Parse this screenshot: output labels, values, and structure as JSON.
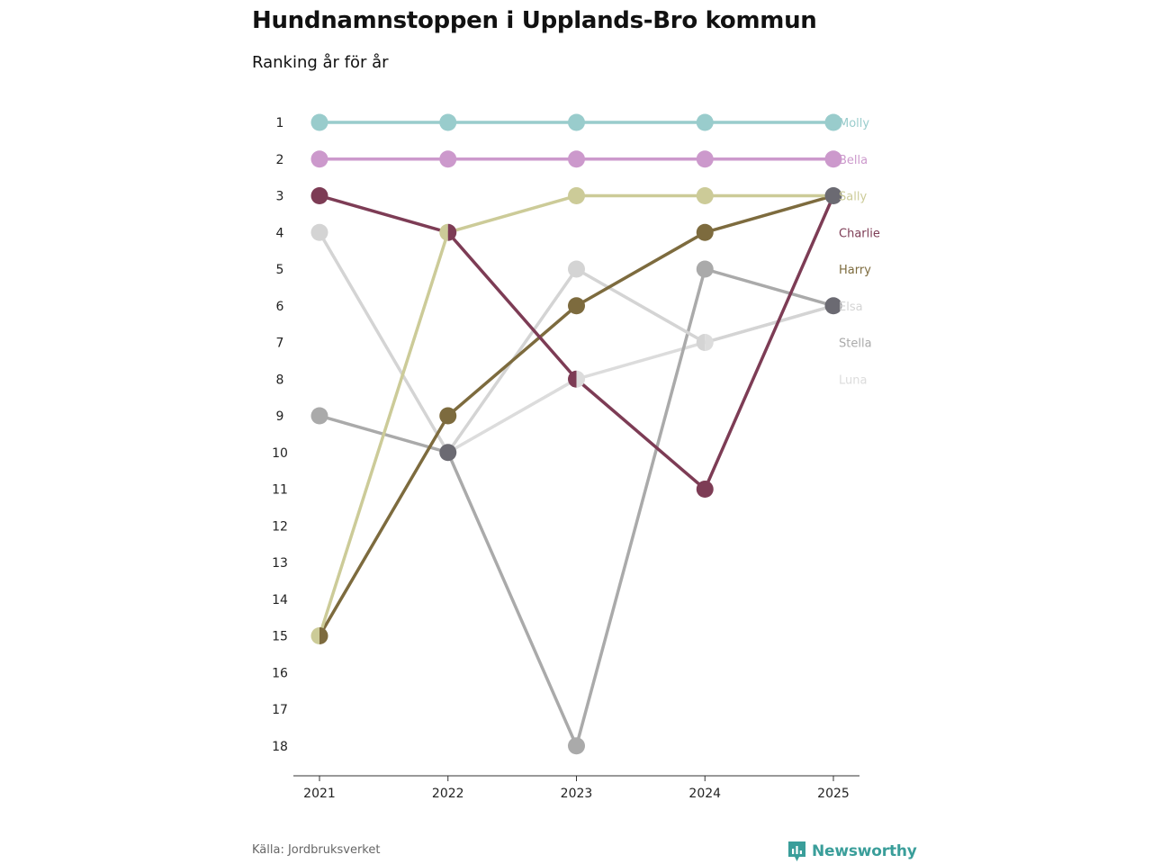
{
  "header": {
    "title": "Hundnamnstoppen i Upplands-Bro kommun",
    "subtitle": "Ranking år för år"
  },
  "footer": {
    "source": "Källa: Jordbruksverket",
    "brand": "Newsworthy"
  },
  "chart_data": {
    "type": "line",
    "title": "Hundnamnstoppen i Upplands-Bro kommun",
    "subtitle": "Ranking år för år",
    "xlabel": "",
    "ylabel": "",
    "x": [
      "2021",
      "2022",
      "2023",
      "2024",
      "2025"
    ],
    "y_ticks": [
      "1",
      "2",
      "3",
      "4",
      "5",
      "6",
      "7",
      "8",
      "9",
      "10",
      "11",
      "12",
      "13",
      "14",
      "15",
      "16",
      "17",
      "18"
    ],
    "ylim": [
      1,
      18
    ],
    "y_inverted": true,
    "series": [
      {
        "name": "Luna",
        "color": "#dcdcdc",
        "values": [
          null,
          10,
          8,
          7,
          6
        ],
        "label_rank": 8
      },
      {
        "name": "Stella",
        "color": "#aaaaaa",
        "values": [
          9,
          10,
          18,
          5,
          6
        ],
        "label_rank": 7
      },
      {
        "name": "Elsa",
        "color": "#d4d4d4",
        "values": [
          4,
          10,
          5,
          7,
          6
        ],
        "label_rank": 6
      },
      {
        "name": "Harry",
        "color": "#7d6b3e",
        "values": [
          15,
          9,
          6,
          4,
          3
        ],
        "label_rank": 5
      },
      {
        "name": "Charlie",
        "color": "#7d3c55",
        "values": [
          3,
          4,
          8,
          11,
          3
        ],
        "label_rank": 4
      },
      {
        "name": "Sally",
        "color": "#cccb98",
        "values": [
          15,
          4,
          3,
          3,
          3
        ],
        "label_rank": 3
      },
      {
        "name": "Bella",
        "color": "#cc99cc",
        "values": [
          2,
          2,
          2,
          2,
          2
        ],
        "label_rank": 2
      },
      {
        "name": "Molly",
        "color": "#99cccc",
        "values": [
          1,
          1,
          1,
          1,
          1
        ],
        "label_rank": 1
      }
    ],
    "overlap_color": "#6b6a72",
    "legend": "right"
  }
}
